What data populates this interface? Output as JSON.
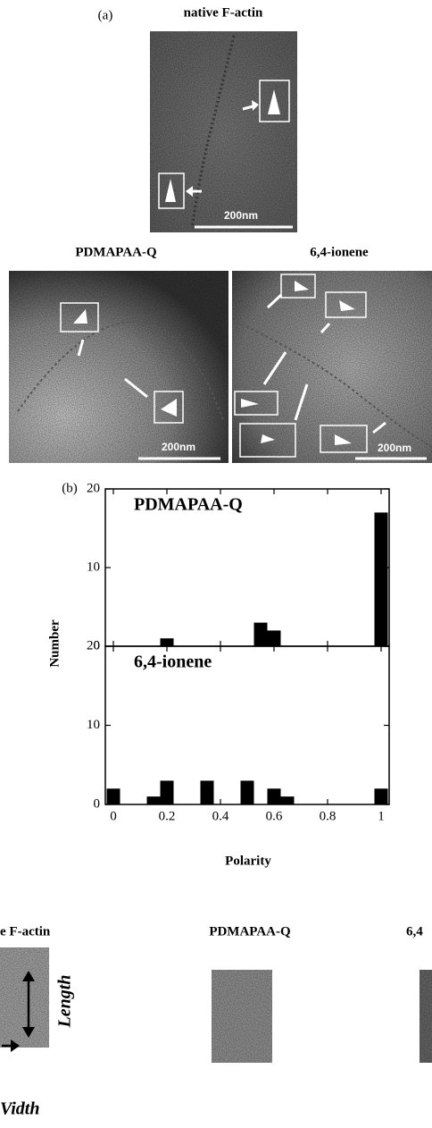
{
  "panel_a": {
    "label": "(a)",
    "native_title": "native F-actin",
    "pdmapaa_title": "PDMAPAA-Q",
    "ionene_title": "6,4-ionene",
    "scale_bars": [
      "200nm",
      "200nm",
      "200nm"
    ]
  },
  "panel_b": {
    "label": "(b)",
    "y_label": "Number",
    "x_label": "Polarity"
  },
  "chart_data": [
    {
      "type": "bar",
      "title": "PDMAPAA-Q",
      "color": "#000000",
      "x": [
        0,
        0.05,
        0.1,
        0.15,
        0.2,
        0.25,
        0.3,
        0.35,
        0.4,
        0.45,
        0.5,
        0.55,
        0.6,
        0.65,
        0.7,
        0.75,
        0.8,
        0.85,
        0.9,
        0.95,
        1
      ],
      "values": [
        0,
        0,
        0,
        0,
        1,
        0,
        0,
        0,
        0,
        0,
        0,
        3,
        2,
        0,
        0,
        0,
        0,
        0,
        0,
        0,
        17
      ],
      "xlim": [
        -0.03,
        1.03
      ],
      "ylim": [
        0,
        20
      ],
      "yticks": [
        0,
        10,
        20
      ]
    },
    {
      "type": "bar",
      "title": "6,4-ionene",
      "color": "#000000",
      "x": [
        0,
        0.05,
        0.1,
        0.15,
        0.2,
        0.25,
        0.3,
        0.35,
        0.4,
        0.45,
        0.5,
        0.55,
        0.6,
        0.65,
        0.7,
        0.75,
        0.8,
        0.85,
        0.9,
        0.95,
        1
      ],
      "values": [
        2,
        0,
        0,
        1,
        3,
        0,
        0,
        3,
        0,
        0,
        3,
        0,
        2,
        1,
        0,
        0,
        0,
        0,
        0,
        0,
        2
      ],
      "xlim": [
        -0.03,
        1.03
      ],
      "ylim": [
        0,
        20
      ],
      "yticks": [
        0,
        10,
        20
      ],
      "xticks": [
        0,
        0.2,
        0.4,
        0.6,
        0.8,
        1
      ]
    }
  ],
  "panel_c": {
    "left_title": "e F-actin",
    "middle_title": "PDMAPAA-Q",
    "right_title": "6,4",
    "length_label": "Length",
    "width_label": "Vidth"
  }
}
